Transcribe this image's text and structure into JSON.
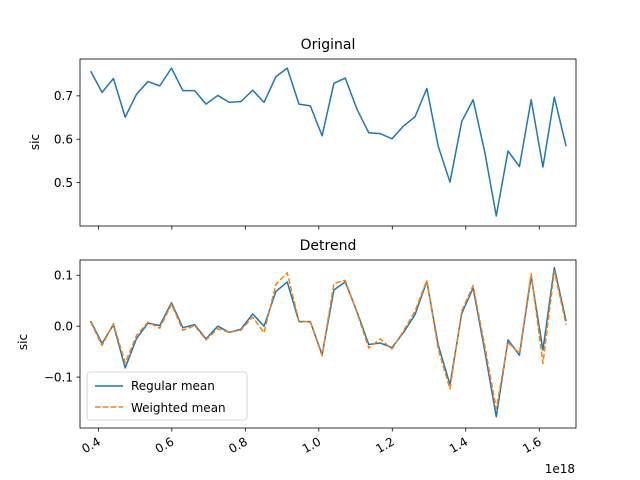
{
  "chart_data": [
    {
      "type": "line",
      "title": "Original",
      "ylabel": "sic",
      "xlim": [
        0.35,
        1.7
      ],
      "ylim": [
        0.4,
        0.785
      ],
      "yticks": [
        0.5,
        0.6,
        0.7
      ],
      "ytick_labels": [
        "0.5",
        "0.6",
        "0.7"
      ],
      "xticks": [
        0.4,
        0.6,
        0.8,
        1.0,
        1.2,
        1.4,
        1.6
      ],
      "show_xtick_labels": false,
      "grid": false,
      "series": [
        {
          "color": "#1f77b4",
          "style": "solid",
          "points": [
            [
              0.379,
              0.757
            ],
            [
              0.41,
              0.708
            ],
            [
              0.441,
              0.74
            ],
            [
              0.473,
              0.651
            ],
            [
              0.504,
              0.704
            ],
            [
              0.535,
              0.733
            ],
            [
              0.567,
              0.723
            ],
            [
              0.599,
              0.764
            ],
            [
              0.63,
              0.712
            ],
            [
              0.662,
              0.712
            ],
            [
              0.693,
              0.681
            ],
            [
              0.725,
              0.701
            ],
            [
              0.756,
              0.685
            ],
            [
              0.788,
              0.687
            ],
            [
              0.82,
              0.713
            ],
            [
              0.851,
              0.685
            ],
            [
              0.883,
              0.744
            ],
            [
              0.914,
              0.764
            ],
            [
              0.946,
              0.681
            ],
            [
              0.977,
              0.677
            ],
            [
              1.009,
              0.608
            ],
            [
              1.041,
              0.729
            ],
            [
              1.072,
              0.741
            ],
            [
              1.104,
              0.669
            ],
            [
              1.136,
              0.615
            ],
            [
              1.167,
              0.613
            ],
            [
              1.199,
              0.601
            ],
            [
              1.23,
              0.63
            ],
            [
              1.262,
              0.652
            ],
            [
              1.294,
              0.717
            ],
            [
              1.325,
              0.584
            ],
            [
              1.357,
              0.501
            ],
            [
              1.389,
              0.641
            ],
            [
              1.42,
              0.691
            ],
            [
              1.452,
              0.569
            ],
            [
              1.483,
              0.423
            ],
            [
              1.515,
              0.573
            ],
            [
              1.546,
              0.537
            ],
            [
              1.578,
              0.691
            ],
            [
              1.61,
              0.536
            ],
            [
              1.641,
              0.697
            ],
            [
              1.673,
              0.584
            ]
          ]
        }
      ]
    },
    {
      "type": "line",
      "title": "Detrend",
      "ylabel": "sic",
      "xlim": [
        0.35,
        1.7
      ],
      "ylim": [
        -0.2,
        0.13
      ],
      "yticks": [
        -0.1,
        0.0,
        0.1
      ],
      "ytick_labels": [
        "−0.1",
        "0.0",
        "0.1"
      ],
      "xticks": [
        0.4,
        0.6,
        0.8,
        1.0,
        1.2,
        1.4,
        1.6
      ],
      "xtick_labels": [
        "0.4",
        "0.6",
        "0.8",
        "1.0",
        "1.2",
        "1.4",
        "1.6"
      ],
      "x_offset_label": "1e18",
      "grid": false,
      "legend": "lower-left",
      "series": [
        {
          "name": "Regular mean",
          "color": "#1f77b4",
          "style": "solid",
          "points": [
            [
              0.379,
              0.01
            ],
            [
              0.41,
              -0.034
            ],
            [
              0.441,
              0.003
            ],
            [
              0.473,
              -0.082
            ],
            [
              0.504,
              -0.024
            ],
            [
              0.535,
              0.006
            ],
            [
              0.567,
              0.001
            ],
            [
              0.599,
              0.046
            ],
            [
              0.63,
              -0.003
            ],
            [
              0.662,
              0.003
            ],
            [
              0.693,
              -0.025
            ],
            [
              0.725,
              0.0
            ],
            [
              0.756,
              -0.012
            ],
            [
              0.788,
              -0.006
            ],
            [
              0.82,
              0.024
            ],
            [
              0.851,
              0.0
            ],
            [
              0.883,
              0.068
            ],
            [
              0.914,
              0.087
            ],
            [
              0.946,
              0.009
            ],
            [
              0.977,
              0.009
            ],
            [
              1.009,
              -0.056
            ],
            [
              1.041,
              0.071
            ],
            [
              1.072,
              0.087
            ],
            [
              1.104,
              0.028
            ],
            [
              1.136,
              -0.036
            ],
            [
              1.167,
              -0.033
            ],
            [
              1.199,
              -0.042
            ],
            [
              1.23,
              -0.013
            ],
            [
              1.262,
              0.023
            ],
            [
              1.294,
              0.088
            ],
            [
              1.325,
              -0.037
            ],
            [
              1.357,
              -0.115
            ],
            [
              1.389,
              0.025
            ],
            [
              1.42,
              0.075
            ],
            [
              1.452,
              -0.05
            ],
            [
              1.483,
              -0.178
            ],
            [
              1.515,
              -0.027
            ],
            [
              1.546,
              -0.057
            ],
            [
              1.578,
              0.098
            ],
            [
              1.61,
              -0.047
            ],
            [
              1.641,
              0.115
            ],
            [
              1.673,
              0.01
            ]
          ]
        },
        {
          "name": "Weighted mean",
          "color": "#ff7f0e",
          "style": "dashed",
          "points": [
            [
              0.379,
              0.008
            ],
            [
              0.41,
              -0.038
            ],
            [
              0.441,
              0.005
            ],
            [
              0.473,
              -0.072
            ],
            [
              0.504,
              -0.018
            ],
            [
              0.535,
              0.008
            ],
            [
              0.567,
              -0.004
            ],
            [
              0.599,
              0.043
            ],
            [
              0.63,
              -0.008
            ],
            [
              0.662,
              0.001
            ],
            [
              0.693,
              -0.027
            ],
            [
              0.725,
              -0.005
            ],
            [
              0.756,
              -0.012
            ],
            [
              0.788,
              -0.008
            ],
            [
              0.82,
              0.018
            ],
            [
              0.851,
              -0.013
            ],
            [
              0.883,
              0.082
            ],
            [
              0.914,
              0.105
            ],
            [
              0.946,
              0.01
            ],
            [
              0.977,
              0.008
            ],
            [
              1.009,
              -0.058
            ],
            [
              1.041,
              0.084
            ],
            [
              1.072,
              0.09
            ],
            [
              1.104,
              0.026
            ],
            [
              1.136,
              -0.043
            ],
            [
              1.167,
              -0.025
            ],
            [
              1.199,
              -0.045
            ],
            [
              1.23,
              -0.01
            ],
            [
              1.262,
              0.03
            ],
            [
              1.294,
              0.09
            ],
            [
              1.325,
              -0.045
            ],
            [
              1.357,
              -0.123
            ],
            [
              1.389,
              0.03
            ],
            [
              1.42,
              0.08
            ],
            [
              1.452,
              -0.04
            ],
            [
              1.483,
              -0.162
            ],
            [
              1.515,
              -0.032
            ],
            [
              1.546,
              -0.053
            ],
            [
              1.578,
              0.103
            ],
            [
              1.61,
              -0.073
            ],
            [
              1.641,
              0.108
            ],
            [
              1.673,
              0.003
            ]
          ]
        }
      ]
    }
  ]
}
